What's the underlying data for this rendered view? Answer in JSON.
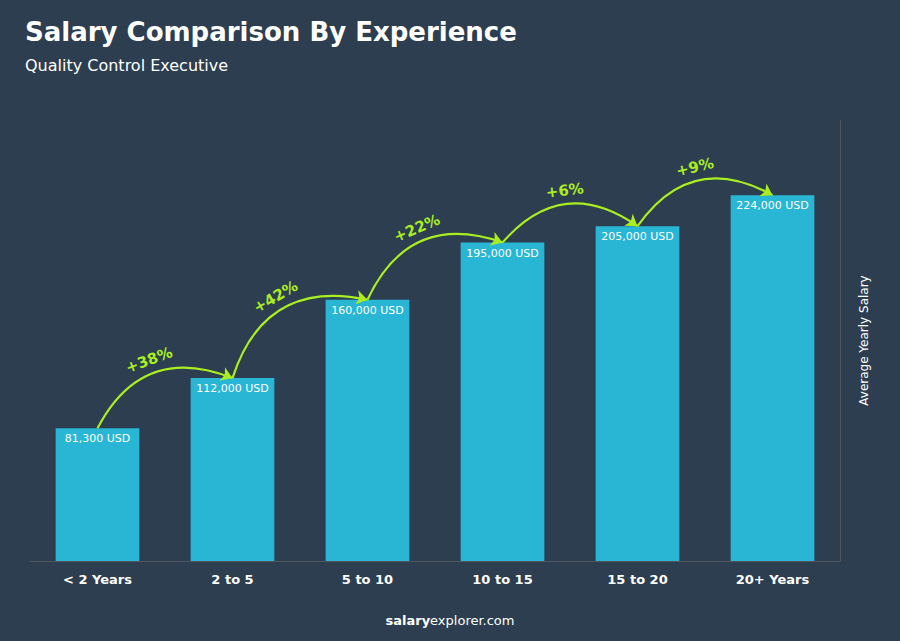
{
  "chart_data": {
    "type": "bar",
    "title": "Salary Comparison By Experience",
    "subtitle": "Quality Control Executive",
    "categories": [
      "< 2 Years",
      "2 to 5",
      "5 to 10",
      "10 to 15",
      "15 to 20",
      "20+ Years"
    ],
    "values": [
      81300,
      112000,
      160000,
      195000,
      205000,
      224000
    ],
    "value_labels": [
      "81,300 USD",
      "112,000 USD",
      "160,000 USD",
      "195,000 USD",
      "205,000 USD",
      "224,000 USD"
    ],
    "data_labels": true,
    "color": "#29b6d4",
    "ylim": [
      0,
      270000
    ],
    "yticks": [],
    "tick_labels": "x",
    "grid": false,
    "ylabel": "Average Yearly Salary",
    "annotations": [
      {
        "text": "+38%",
        "from": "< 2 Years",
        "to": "2 to 5",
        "color": "#aaee22"
      },
      {
        "text": "+42%",
        "from": "2 to 5",
        "to": "5 to 10",
        "color": "#aaee22"
      },
      {
        "text": "+22%",
        "from": "5 to 10",
        "to": "10 to 15",
        "color": "#aaee22"
      },
      {
        "text": "+6%",
        "from": "10 to 15",
        "to": "15 to 20",
        "color": "#aaee22"
      },
      {
        "text": "+9%",
        "from": "15 to 20",
        "to": "20+ Years",
        "color": "#aaee22"
      }
    ],
    "watermark": [
      "salary",
      "explorer.com"
    ],
    "background_color": "#2c3e50",
    "text_color": "#ffffff"
  }
}
